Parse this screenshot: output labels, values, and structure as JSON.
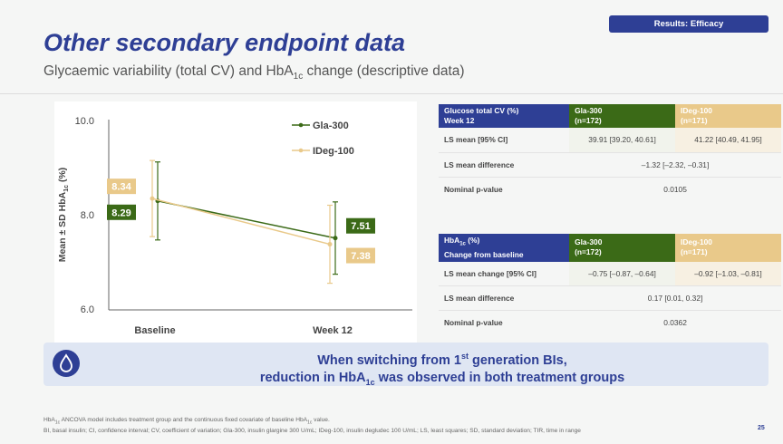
{
  "header": {
    "badge": "Results: Efficacy",
    "title": "Other secondary endpoint data",
    "subtitle_pre": "Glycaemic variability (total CV) and HbA",
    "subtitle_sub": "1c",
    "subtitle_post": " change (descriptive data)"
  },
  "chart_data": {
    "type": "line",
    "categories": [
      "Baseline",
      "Week 12"
    ],
    "ylabel_pre": "Mean ± SD HbA",
    "ylabel_sub": "1c",
    "ylabel_post": " (%)",
    "yticks": [
      "10.0",
      "8.0",
      "6.0"
    ],
    "ylim": [
      6.0,
      10.0
    ],
    "series": [
      {
        "name": "Gla-300",
        "color": "#3b6a17",
        "values": [
          8.29,
          7.51
        ],
        "sd": [
          0.82,
          0.76
        ],
        "labels": [
          "8.29",
          "7.51"
        ]
      },
      {
        "name": "IDeg-100",
        "color": "#e9c98a",
        "values": [
          8.34,
          7.38
        ],
        "sd": [
          0.8,
          0.82
        ],
        "labels": [
          "8.34",
          "7.38"
        ]
      }
    ],
    "legend_position": "top-right"
  },
  "table1": {
    "h1": "Glucose total CV (%)",
    "h2": "Week 12",
    "gla_h1": "Gla-300",
    "gla_h2": "(n=172)",
    "ideg_h1": "IDeg-100",
    "ideg_h2": "(n=171)",
    "r1_label": "LS mean [95% CI]",
    "r1_gla": "39.91 [39.20, 40.61]",
    "r1_ideg": "41.22 [40.49, 41.95]",
    "r2_label": "LS mean difference",
    "r2_val": "–1.32 [–2.32, –0.31]",
    "r3_label": "Nominal p-value",
    "r3_val": "0.0105"
  },
  "table2": {
    "h1_pre": "HbA",
    "h1_sub": "1c",
    "h1_post": " (%)",
    "h2": "Change from baseline",
    "gla_h1": "Gla-300",
    "gla_h2": "(n=172)",
    "ideg_h1": "IDeg-100",
    "ideg_h2": "(n=171)",
    "r1_label": "LS mean change [95% CI]",
    "r1_gla": "–0.75 [–0.87, –0.64]",
    "r1_ideg": "–0.92 [–1.03, –0.81]",
    "r2_label": "LS mean difference",
    "r2_val": "0.17 [0.01, 0.32]",
    "r3_label": "Nominal p-value",
    "r3_val": "0.0362"
  },
  "conclusion": {
    "l1_pre": "When switching from 1",
    "l1_sup": "st",
    "l1_post": " generation BIs,",
    "l2_pre": "reduction in HbA",
    "l2_sub": "1c",
    "l2_post": " was observed in both treatment groups",
    "icon": "water-drop-icon"
  },
  "footnote": {
    "l1_pre": "HbA",
    "l1_sub": "1c",
    "l1_mid": " ANCOVA model includes treatment group and the continuous fixed covariate of baseline HbA",
    "l1_sub2": "1c",
    "l1_post": " value.",
    "l2": "BI, basal insulin; CI, confidence interval; CV, coefficient of variation; Gla-300, insulin glargine 300 U/mL; IDeg-100, insulin degludec 100 U/mL; LS, least squares; SD, standard deviation; TIR, time in range"
  },
  "page_number": "25",
  "colors": {
    "brand": "#2e3f95",
    "gla": "#3b6a17",
    "ideg": "#e9c98a"
  }
}
